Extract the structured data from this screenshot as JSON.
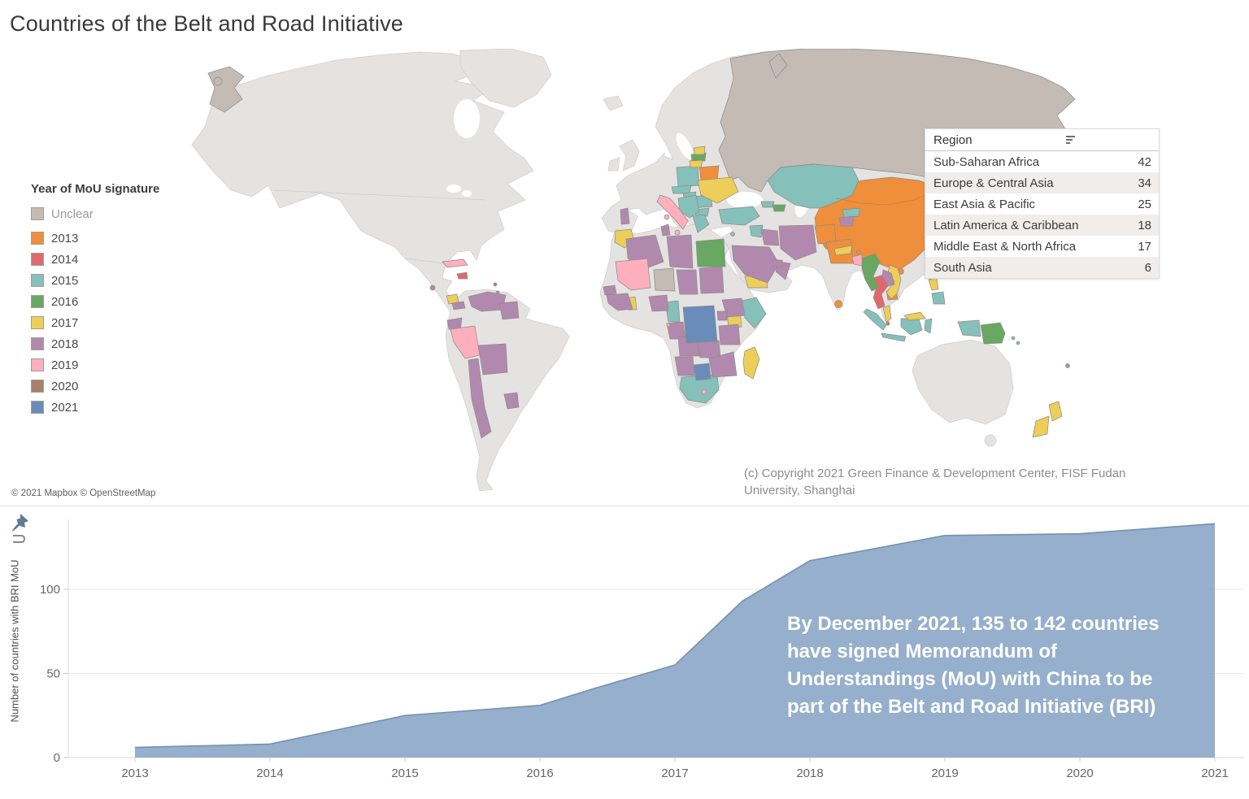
{
  "title": "Countries of the Belt and Road Initiative",
  "map": {
    "legend": {
      "title": "Year of MoU signature",
      "items": [
        {
          "label": "Unclear",
          "color": "#c4bbb5"
        },
        {
          "label": "2013",
          "color": "#ef8e3b"
        },
        {
          "label": "2014",
          "color": "#e0696c"
        },
        {
          "label": "2015",
          "color": "#85c0ba"
        },
        {
          "label": "2016",
          "color": "#68a862"
        },
        {
          "label": "2017",
          "color": "#ecce58"
        },
        {
          "label": "2018",
          "color": "#b289ae"
        },
        {
          "label": "2019",
          "color": "#fdafbe"
        },
        {
          "label": "2020",
          "color": "#a88168"
        },
        {
          "label": "2021",
          "color": "#6a8cba"
        }
      ]
    },
    "region_table": {
      "header": "Region",
      "rows": [
        {
          "region": "Sub-Saharan Africa",
          "count": 42
        },
        {
          "region": "Europe & Central Asia",
          "count": 34
        },
        {
          "region": "East Asia & Pacific",
          "count": 25
        },
        {
          "region": "Latin America & Caribbean",
          "count": 18
        },
        {
          "region": "Middle East & North Africa",
          "count": 17
        },
        {
          "region": "South Asia",
          "count": 6
        }
      ]
    },
    "countries": [
      {
        "id": "russia",
        "year": "Unclear"
      },
      {
        "id": "chukotka",
        "year": "Unclear"
      },
      {
        "id": "chukotka-island",
        "year": "Unclear"
      },
      {
        "id": "arctic-isle",
        "year": "Unclear"
      },
      {
        "id": "niger",
        "year": "Unclear"
      },
      {
        "id": "mongolia-china",
        "year": "2013"
      },
      {
        "id": "hainan",
        "year": "2013"
      },
      {
        "id": "belarus",
        "year": "2013"
      },
      {
        "id": "balkan-dot",
        "year": "2013"
      },
      {
        "id": "afghanistan",
        "year": "2013"
      },
      {
        "id": "pakistan",
        "year": "2013"
      },
      {
        "id": "cambodia",
        "year": "2013"
      },
      {
        "id": "sri-lanka",
        "year": "2013"
      },
      {
        "id": "bhutan",
        "year": "2013"
      },
      {
        "id": "dominican",
        "year": "2014"
      },
      {
        "id": "antilles-1",
        "year": "2014"
      },
      {
        "id": "thailand",
        "year": "2014"
      },
      {
        "id": "singapore",
        "year": "2014"
      },
      {
        "id": "poland",
        "year": "2015"
      },
      {
        "id": "czech-slovakia",
        "year": "2015"
      },
      {
        "id": "hungary",
        "year": "2015"
      },
      {
        "id": "romania",
        "year": "2015"
      },
      {
        "id": "bulgaria",
        "year": "2015"
      },
      {
        "id": "balkans",
        "year": "2015"
      },
      {
        "id": "greece",
        "year": "2015"
      },
      {
        "id": "cyprus",
        "year": "2015"
      },
      {
        "id": "turkey",
        "year": "2015"
      },
      {
        "id": "syria",
        "year": "2015"
      },
      {
        "id": "georgia",
        "year": "2015"
      },
      {
        "id": "kazakhstan",
        "year": "2015"
      },
      {
        "id": "kyrgyzstan",
        "year": "2015"
      },
      {
        "id": "cameroon",
        "year": "2015"
      },
      {
        "id": "somalia",
        "year": "2015"
      },
      {
        "id": "south-africa",
        "year": "2015"
      },
      {
        "id": "indonesia-sumatra",
        "year": "2015"
      },
      {
        "id": "indonesia-java",
        "year": "2015"
      },
      {
        "id": "indonesia-kalimantan",
        "year": "2015"
      },
      {
        "id": "indonesia-sulawesi",
        "year": "2015"
      },
      {
        "id": "indonesia-papua",
        "year": "2015"
      },
      {
        "id": "philippines-south",
        "year": "2015"
      },
      {
        "id": "solomon-1",
        "year": "2015"
      },
      {
        "id": "solomon-2",
        "year": "2015"
      },
      {
        "id": "latvia",
        "year": "2016"
      },
      {
        "id": "azerbaijan",
        "year": "2016"
      },
      {
        "id": "egypt",
        "year": "2016"
      },
      {
        "id": "myanmar",
        "year": "2016"
      },
      {
        "id": "png",
        "year": "2016"
      },
      {
        "id": "estonia",
        "year": "2017"
      },
      {
        "id": "lithuania",
        "year": "2017"
      },
      {
        "id": "ukraine",
        "year": "2017"
      },
      {
        "id": "morocco",
        "year": "2017"
      },
      {
        "id": "ghana",
        "year": "2017"
      },
      {
        "id": "kenya",
        "year": "2017"
      },
      {
        "id": "madagascar",
        "year": "2017"
      },
      {
        "id": "yemen",
        "year": "2017"
      },
      {
        "id": "nepal",
        "year": "2017"
      },
      {
        "id": "vietnam",
        "year": "2017"
      },
      {
        "id": "malaysia-pen",
        "year": "2017"
      },
      {
        "id": "malaysia-borneo",
        "year": "2017"
      },
      {
        "id": "philippines-luzon",
        "year": "2017"
      },
      {
        "id": "new-zealand-north",
        "year": "2017"
      },
      {
        "id": "new-zealand-south",
        "year": "2017"
      },
      {
        "id": "costa-rica",
        "year": "2017"
      },
      {
        "id": "portugal",
        "year": "2018"
      },
      {
        "id": "iran",
        "year": "2018"
      },
      {
        "id": "iraq",
        "year": "2018"
      },
      {
        "id": "saudi",
        "year": "2018"
      },
      {
        "id": "oman",
        "year": "2018"
      },
      {
        "id": "uae",
        "year": "2018"
      },
      {
        "id": "tajikistan",
        "year": "2018"
      },
      {
        "id": "laos",
        "year": "2018"
      },
      {
        "id": "algeria",
        "year": "2018"
      },
      {
        "id": "tunisia",
        "year": "2018"
      },
      {
        "id": "libya",
        "year": "2018"
      },
      {
        "id": "senegal",
        "year": "2018"
      },
      {
        "id": "guinea-group",
        "year": "2018"
      },
      {
        "id": "nigeria",
        "year": "2018"
      },
      {
        "id": "chad",
        "year": "2018"
      },
      {
        "id": "sudan",
        "year": "2018"
      },
      {
        "id": "gabon-congo",
        "year": "2018"
      },
      {
        "id": "ethiopia",
        "year": "2018"
      },
      {
        "id": "uganda",
        "year": "2018"
      },
      {
        "id": "tanzania",
        "year": "2018"
      },
      {
        "id": "angola",
        "year": "2018"
      },
      {
        "id": "zambia",
        "year": "2018"
      },
      {
        "id": "moz-zim",
        "year": "2018"
      },
      {
        "id": "namibia",
        "year": "2018"
      },
      {
        "id": "el-salvador",
        "year": "2018"
      },
      {
        "id": "panama",
        "year": "2018"
      },
      {
        "id": "venezuela",
        "year": "2018"
      },
      {
        "id": "guyana-suriname",
        "year": "2018"
      },
      {
        "id": "ecuador",
        "year": "2018"
      },
      {
        "id": "bolivia",
        "year": "2018"
      },
      {
        "id": "chile",
        "year": "2018"
      },
      {
        "id": "uruguay",
        "year": "2018"
      },
      {
        "id": "antilles-2",
        "year": "2018"
      },
      {
        "id": "fiji",
        "year": "2018"
      },
      {
        "id": "italy",
        "year": "2019"
      },
      {
        "id": "sicily",
        "year": "2019"
      },
      {
        "id": "sardinia",
        "year": "2019"
      },
      {
        "id": "mauritania-mali",
        "year": "2019"
      },
      {
        "id": "eq-guinea",
        "year": "2019"
      },
      {
        "id": "lesotho",
        "year": "2019"
      },
      {
        "id": "bangladesh",
        "year": "2019"
      },
      {
        "id": "peru",
        "year": "2019"
      },
      {
        "id": "cuba",
        "year": "2019"
      },
      {
        "id": "drc",
        "year": "2021"
      },
      {
        "id": "botswana",
        "year": "2021"
      }
    ],
    "attribution": "© 2021 Mapbox © OpenStreetMap",
    "copyright": "(c) Copyright 2021 Green Finance & Development Center, FISF Fudan University, Shanghai"
  },
  "chart_data": {
    "type": "area",
    "title": "",
    "x": [
      2013,
      2014,
      2015,
      2016,
      2017,
      2018,
      2019,
      2020,
      2021
    ],
    "values": [
      6,
      8,
      25,
      31,
      55,
      117,
      132,
      133,
      139
    ],
    "points": [
      [
        2013,
        6
      ],
      [
        2014,
        8
      ],
      [
        2015,
        25
      ],
      [
        2015.5,
        28
      ],
      [
        2016,
        31
      ],
      [
        2016.4,
        41
      ],
      [
        2017,
        55
      ],
      [
        2017.5,
        93
      ],
      [
        2018,
        117
      ],
      [
        2019,
        132
      ],
      [
        2020,
        133
      ],
      [
        2021,
        139
      ]
    ],
    "xlabel": "",
    "ylabel": "Number of countries with BRI MoU",
    "yticks": [
      0,
      50,
      100
    ],
    "xticks": [
      2013,
      2014,
      2015,
      2016,
      2017,
      2018,
      2019,
      2020,
      2021
    ],
    "ylim": [
      0,
      145
    ],
    "grid": true,
    "legend_position": "none",
    "area_color": "#8ca8c8",
    "edge_color": "#7590b3",
    "annotation": "By December 2021, 135 to 142 countries have signed Memorandum of Understandings (MoU) with China to be part of the Belt and Road Initiative (BRI)"
  }
}
